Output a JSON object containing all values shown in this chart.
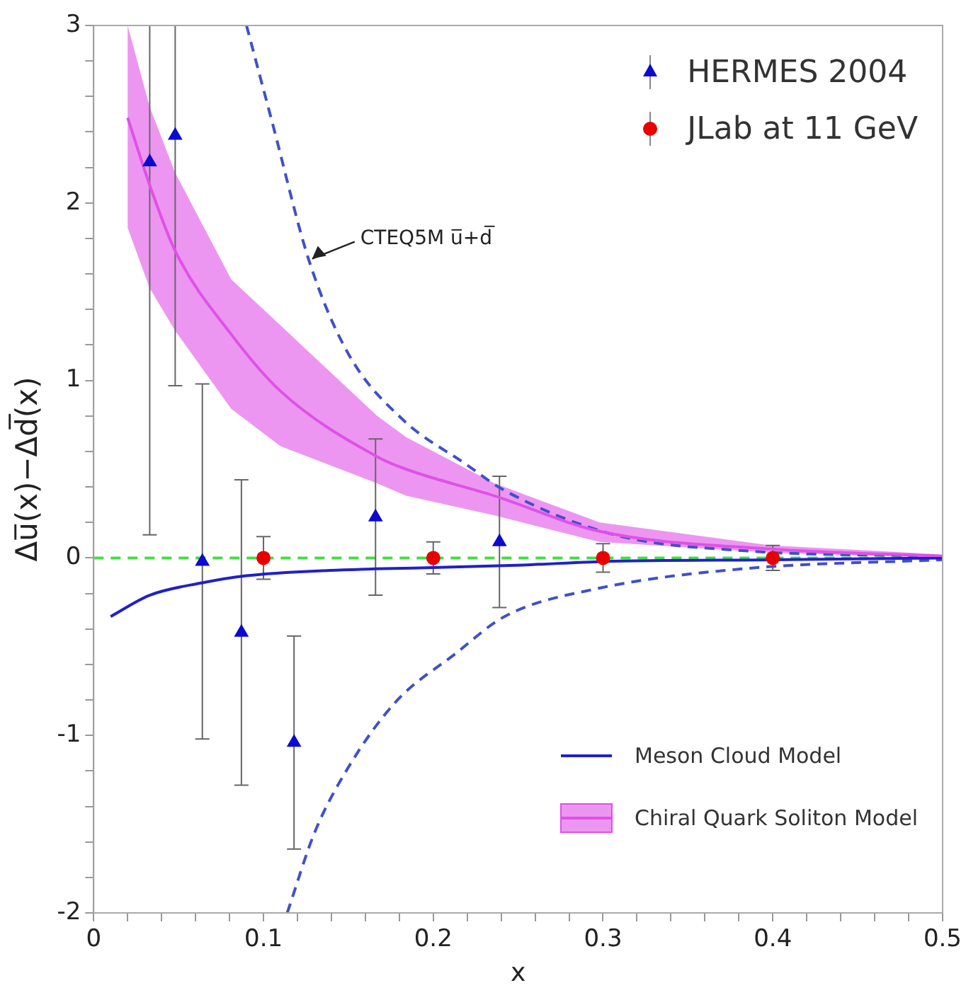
{
  "chart_data": {
    "type": "scatter",
    "xlabel": "x",
    "ylabel": "Δu̅(x)−Δd̅(x)",
    "xlim": [
      0,
      0.5
    ],
    "ylim": [
      -2,
      3
    ],
    "xticks": [
      0,
      {
        "value": 0.02,
        "label": null
      },
      {
        "value": 0.04,
        "label": null
      },
      {
        "value": 0.06,
        "label": null
      },
      {
        "value": 0.08,
        "label": null
      },
      0.1,
      {
        "value": 0.12,
        "label": null
      },
      {
        "value": 0.14,
        "label": null
      },
      {
        "value": 0.16,
        "label": null
      },
      {
        "value": 0.18,
        "label": null
      },
      0.2,
      {
        "value": 0.22,
        "label": null
      },
      {
        "value": 0.24,
        "label": null
      },
      {
        "value": 0.26,
        "label": null
      },
      {
        "value": 0.28,
        "label": null
      },
      0.3,
      {
        "value": 0.32,
        "label": null
      },
      {
        "value": 0.34,
        "label": null
      },
      {
        "value": 0.36,
        "label": null
      },
      {
        "value": 0.38,
        "label": null
      },
      0.4,
      {
        "value": 0.42,
        "label": null
      },
      {
        "value": 0.44,
        "label": null
      },
      {
        "value": 0.46,
        "label": null
      },
      {
        "value": 0.48,
        "label": null
      },
      0.5
    ],
    "yticks": [
      -2,
      {
        "value": -1.8,
        "label": null
      },
      {
        "value": -1.6,
        "label": null
      },
      {
        "value": -1.4,
        "label": null
      },
      {
        "value": -1.2,
        "label": null
      },
      -1,
      {
        "value": -0.8,
        "label": null
      },
      {
        "value": -0.6,
        "label": null
      },
      {
        "value": -0.4,
        "label": null
      },
      {
        "value": -0.2,
        "label": null
      },
      0,
      {
        "value": 0.2,
        "label": null
      },
      {
        "value": 0.4,
        "label": null
      },
      {
        "value": 0.6,
        "label": null
      },
      {
        "value": 0.8,
        "label": null
      },
      1,
      {
        "value": 1.2,
        "label": null
      },
      {
        "value": 1.4,
        "label": null
      },
      {
        "value": 1.6,
        "label": null
      },
      {
        "value": 1.8,
        "label": null
      },
      2,
      {
        "value": 2.2,
        "label": null
      },
      {
        "value": 2.4,
        "label": null
      },
      {
        "value": 2.6,
        "label": null
      },
      {
        "value": 2.8,
        "label": null
      },
      3
    ],
    "grid": false,
    "legend": "top right",
    "series": [
      {
        "name": "HERMES 2004",
        "marker": "triangle",
        "color": "#0a0ad0",
        "x": [
          0.033,
          0.048,
          0.064,
          0.087,
          0.118,
          0.166,
          0.239
        ],
        "values": [
          2.23,
          2.38,
          -0.02,
          -0.42,
          -1.04,
          0.23,
          0.09
        ],
        "errors": [
          [
            0.13,
            3
          ],
          [
            0.97,
            3
          ],
          1.0,
          [
            -1.28,
            0.44
          ],
          0.6,
          0.44,
          0.37
        ]
      },
      {
        "name": "JLab at 11 GeV",
        "marker": "circle",
        "color": "#e80000",
        "x": [
          0.1,
          0.2,
          0.3,
          0.4
        ],
        "values": [
          0,
          0,
          0,
          0
        ],
        "errors": [
          0.12,
          0.09,
          0.08,
          0.07
        ]
      },
      {
        "name": "Meson Cloud Model",
        "type": "line",
        "marker": "none",
        "color": "#2020c8",
        "x": [
          0.01,
          0.033,
          0.064,
          0.09,
          0.139,
          0.196,
          0.253,
          0.3,
          0.4,
          0.5
        ],
        "values": [
          -0.33,
          -0.21,
          -0.14,
          -0.1,
          -0.07,
          -0.055,
          -0.04,
          -0.02,
          -0.01,
          0
        ]
      },
      {
        "name": "Chiral Quark Soliton Model",
        "type": "line",
        "marker": "none",
        "color": "#e050e8",
        "x": [
          0.02,
          0.033,
          0.048,
          0.081,
          0.11,
          0.167,
          0.184,
          0.236,
          0.298,
          0.399,
          0.5
        ],
        "values": [
          2.48,
          2.1,
          1.73,
          1.26,
          0.94,
          0.57,
          0.5,
          0.35,
          0.15,
          0.05,
          0.01
        ],
        "upper": [
          3,
          2.54,
          2.17,
          1.57,
          1.31,
          0.8,
          0.68,
          0.42,
          0.2,
          0.07,
          0.02
        ],
        "lower": [
          1.86,
          1.52,
          1.28,
          0.84,
          0.63,
          0.42,
          0.35,
          0.24,
          0.09,
          0.03,
          0
        ]
      },
      {
        "type": "line",
        "marker": "none",
        "line_style": "dashed",
        "color": "#4050c8",
        "x": [
          0.09,
          0.105,
          0.127,
          0.15,
          0.182,
          0.219,
          0.242,
          0.307,
          0.384,
          0.5
        ],
        "values": [
          3,
          2.46,
          1.67,
          1.15,
          0.78,
          0.53,
          0.38,
          0.13,
          0.04,
          0.01
        ]
      },
      {
        "type": "line",
        "marker": "none",
        "line_style": "dashed",
        "color": "#4050c8",
        "x": [
          0.114,
          0.13,
          0.15,
          0.178,
          0.213,
          0.242,
          0.298,
          0.384,
          0.5
        ],
        "values": [
          -2,
          -1.55,
          -1.18,
          -0.81,
          -0.54,
          -0.33,
          -0.17,
          -0.06,
          -0.01
        ]
      }
    ],
    "ref_lines": [
      {
        "axis": "y",
        "value": 0,
        "color": "#40e040",
        "line_style": "dashed"
      }
    ],
    "annotations": [
      {
        "text": "CTEQ5M u̅+d̅",
        "x": 0.127,
        "y": 1.67
      }
    ]
  }
}
